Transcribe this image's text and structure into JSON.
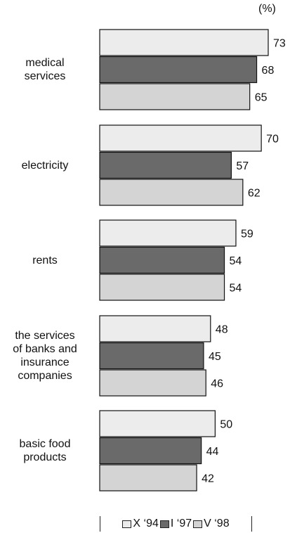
{
  "chart_data": {
    "type": "bar",
    "orientation": "horizontal",
    "unit": "(%)",
    "categories": [
      "medical\nservices",
      "electricity",
      "rents",
      "the services\nof banks and\ninsurance\ncompanies",
      "basic food\nproducts"
    ],
    "series": [
      {
        "name": "X ‘94",
        "color": "#ececec",
        "values": [
          73,
          70,
          59,
          48,
          50
        ]
      },
      {
        "name": "I ‘97",
        "color": "#6a6a6a",
        "values": [
          68,
          57,
          54,
          45,
          44
        ]
      },
      {
        "name": "V ‘98",
        "color": "#d4d4d4",
        "values": [
          65,
          62,
          54,
          46,
          42
        ]
      }
    ],
    "xlim": [
      0,
      75
    ],
    "legend_position": "bottom",
    "grid": false
  }
}
